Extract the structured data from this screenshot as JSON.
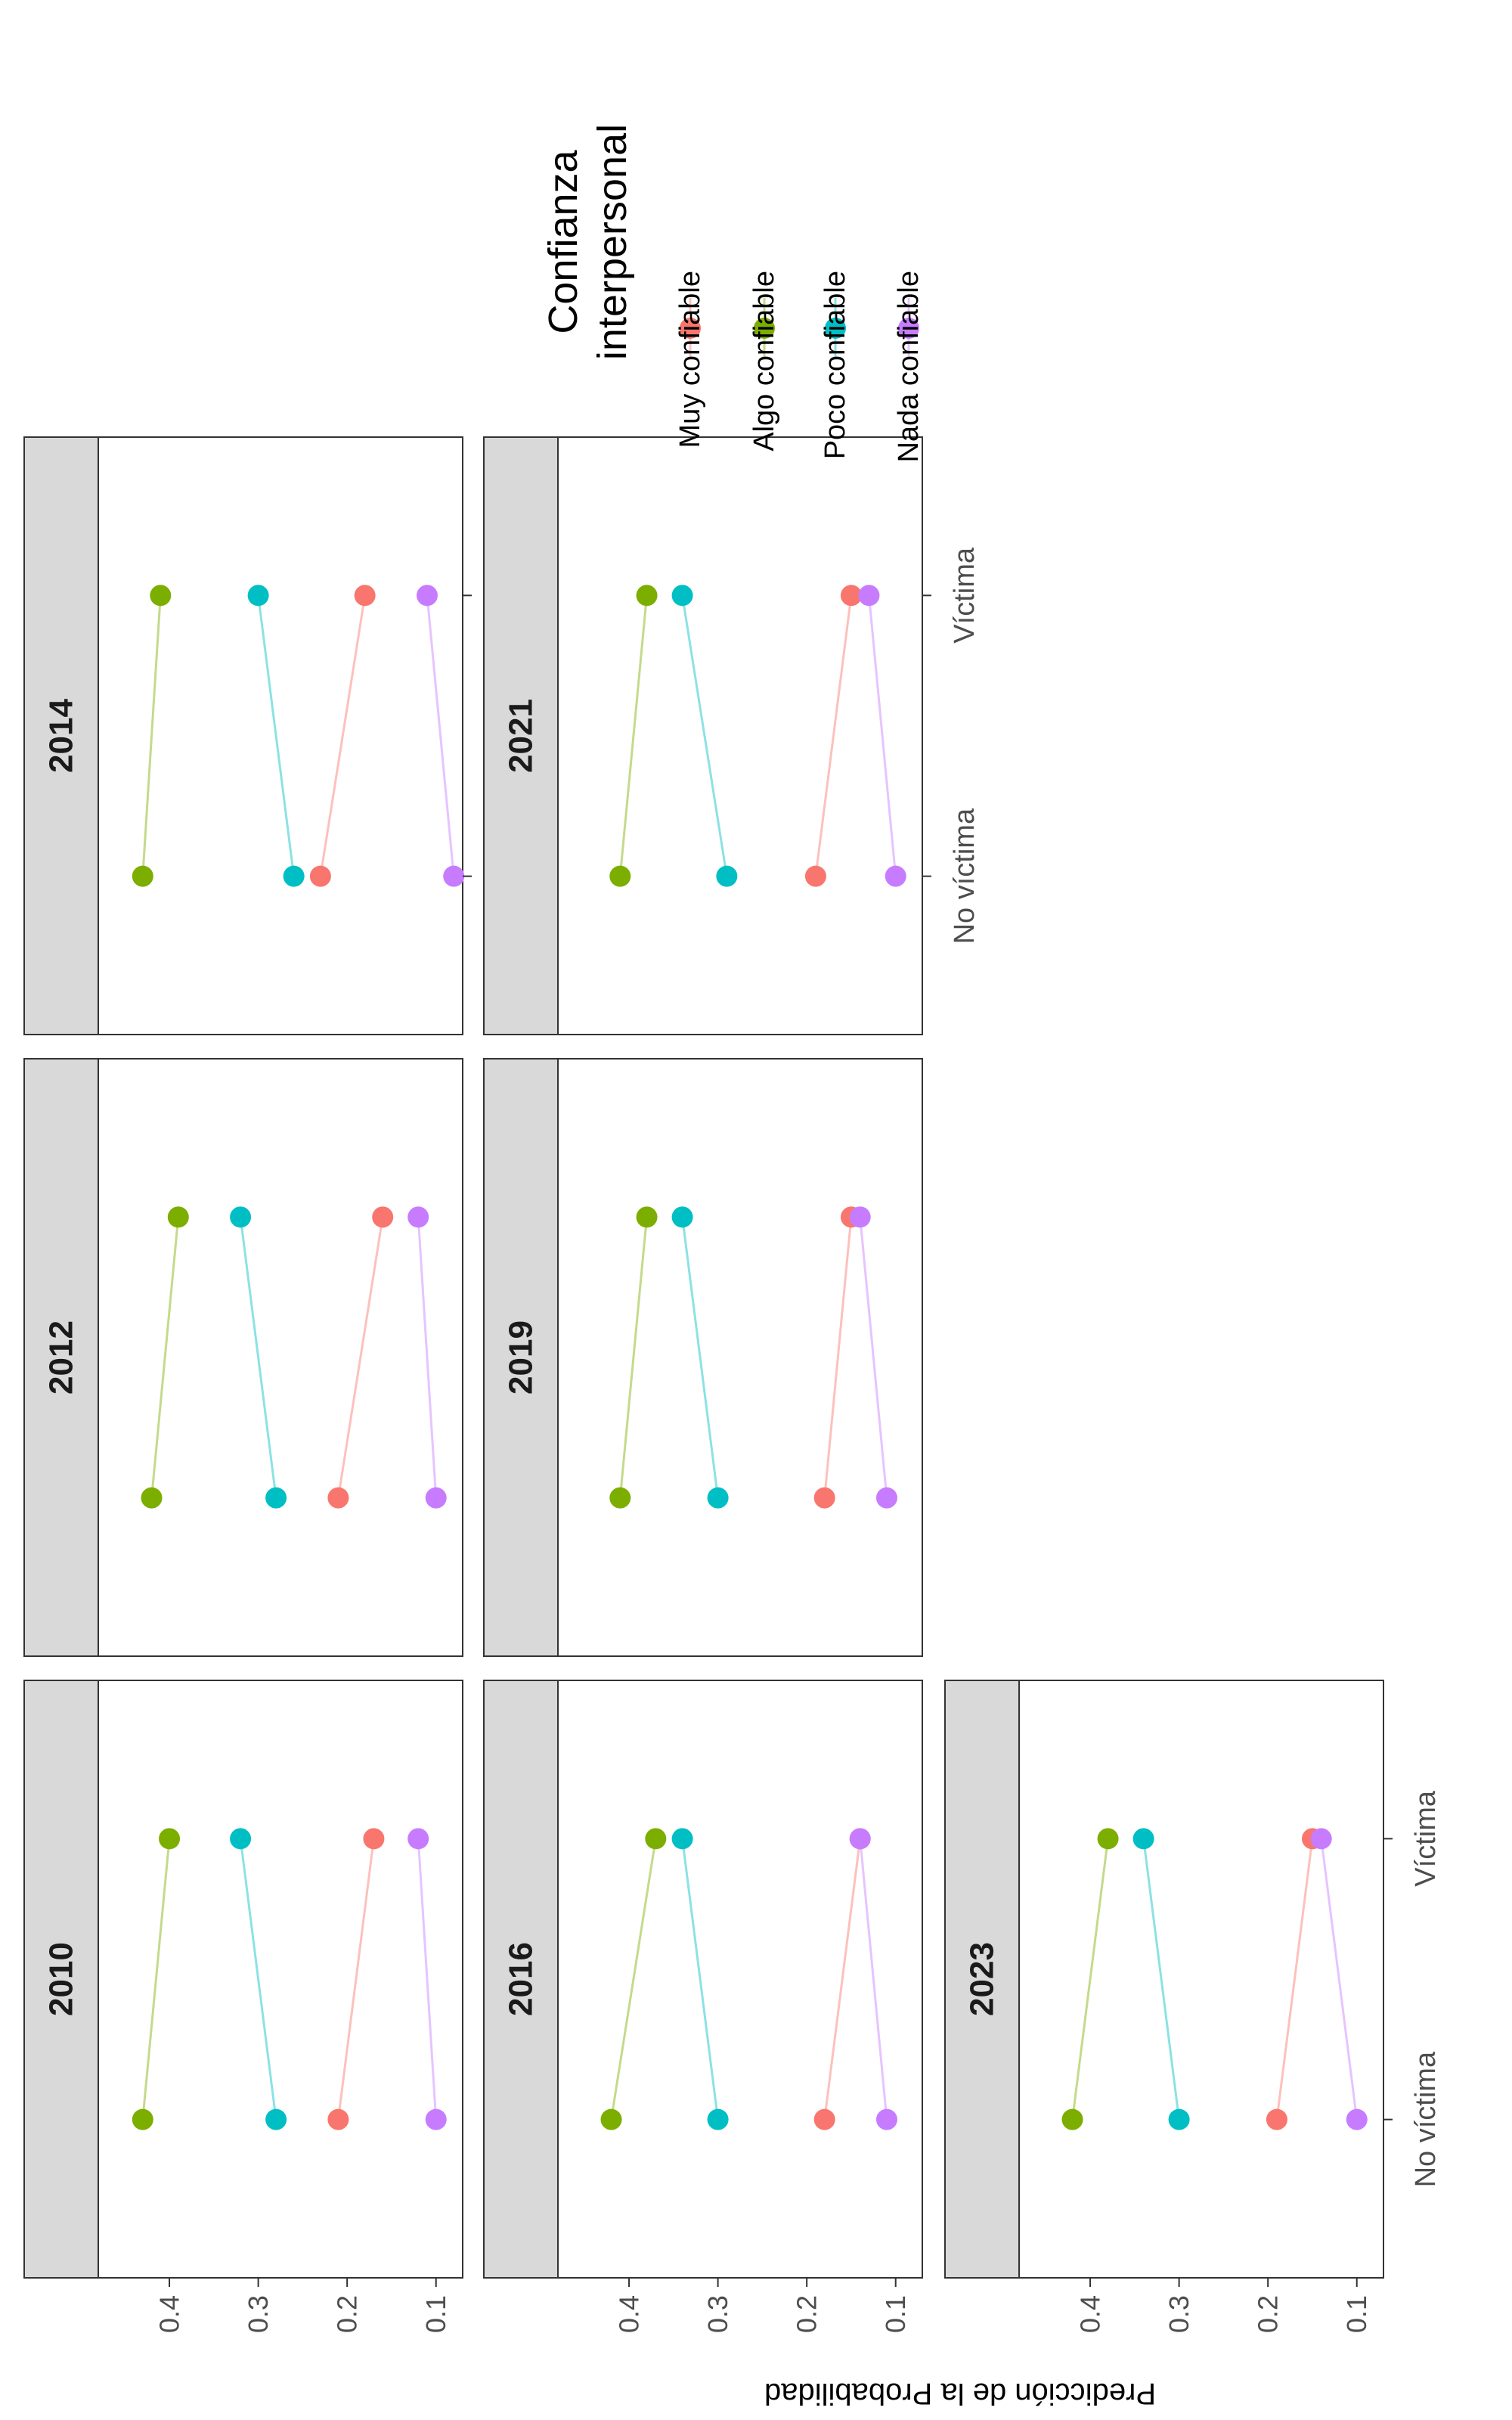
{
  "chart_data": {
    "type": "line",
    "y_axis_title": "Predicción de la Probabilidad",
    "categories": [
      "No víctima",
      "Víctima"
    ],
    "y_ticks": [
      0.1,
      0.2,
      0.3,
      0.4
    ],
    "ylim": [
      0.07,
      0.48
    ],
    "legend": {
      "title_lines": [
        "Confianza",
        "interpersonal"
      ],
      "placement": "right"
    },
    "series_styles": [
      {
        "name": "Muy confiable",
        "color": "#F8766D"
      },
      {
        "name": "Algo confiable",
        "color": "#7CAE00"
      },
      {
        "name": "Poco confiable",
        "color": "#00BFC4"
      },
      {
        "name": "Nada confiable",
        "color": "#C77CFF"
      }
    ],
    "panels": [
      {
        "year": "2010",
        "series": [
          {
            "name": "Muy confiable",
            "values": [
              0.21,
              0.17
            ]
          },
          {
            "name": "Algo confiable",
            "values": [
              0.43,
              0.4
            ]
          },
          {
            "name": "Poco confiable",
            "values": [
              0.28,
              0.32
            ]
          },
          {
            "name": "Nada confiable",
            "values": [
              0.1,
              0.12
            ]
          }
        ]
      },
      {
        "year": "2012",
        "series": [
          {
            "name": "Muy confiable",
            "values": [
              0.21,
              0.16
            ]
          },
          {
            "name": "Algo confiable",
            "values": [
              0.42,
              0.39
            ]
          },
          {
            "name": "Poco confiable",
            "values": [
              0.28,
              0.32
            ]
          },
          {
            "name": "Nada confiable",
            "values": [
              0.1,
              0.12
            ]
          }
        ]
      },
      {
        "year": "2014",
        "series": [
          {
            "name": "Muy confiable",
            "values": [
              0.23,
              0.18
            ]
          },
          {
            "name": "Algo confiable",
            "values": [
              0.43,
              0.41
            ]
          },
          {
            "name": "Poco confiable",
            "values": [
              0.26,
              0.3
            ]
          },
          {
            "name": "Nada confiable",
            "values": [
              0.08,
              0.11
            ]
          }
        ]
      },
      {
        "year": "2016",
        "series": [
          {
            "name": "Muy confiable",
            "values": [
              0.18,
              0.14
            ]
          },
          {
            "name": "Algo confiable",
            "values": [
              0.42,
              0.37
            ]
          },
          {
            "name": "Poco confiable",
            "values": [
              0.3,
              0.34
            ]
          },
          {
            "name": "Nada confiable",
            "values": [
              0.11,
              0.14
            ]
          }
        ]
      },
      {
        "year": "2019",
        "series": [
          {
            "name": "Muy confiable",
            "values": [
              0.18,
              0.15
            ]
          },
          {
            "name": "Algo confiable",
            "values": [
              0.41,
              0.38
            ]
          },
          {
            "name": "Poco confiable",
            "values": [
              0.3,
              0.34
            ]
          },
          {
            "name": "Nada confiable",
            "values": [
              0.11,
              0.14
            ]
          }
        ]
      },
      {
        "year": "2021",
        "series": [
          {
            "name": "Muy confiable",
            "values": [
              0.19,
              0.15
            ]
          },
          {
            "name": "Algo confiable",
            "values": [
              0.41,
              0.38
            ]
          },
          {
            "name": "Poco confiable",
            "values": [
              0.29,
              0.34
            ]
          },
          {
            "name": "Nada confiable",
            "values": [
              0.1,
              0.13
            ]
          }
        ]
      },
      {
        "year": "2023",
        "series": [
          {
            "name": "Muy confiable",
            "values": [
              0.19,
              0.15
            ]
          },
          {
            "name": "Algo confiable",
            "values": [
              0.42,
              0.38
            ]
          },
          {
            "name": "Poco confiable",
            "values": [
              0.3,
              0.34
            ]
          },
          {
            "name": "Nada confiable",
            "values": [
              0.1,
              0.14
            ]
          }
        ]
      }
    ]
  }
}
